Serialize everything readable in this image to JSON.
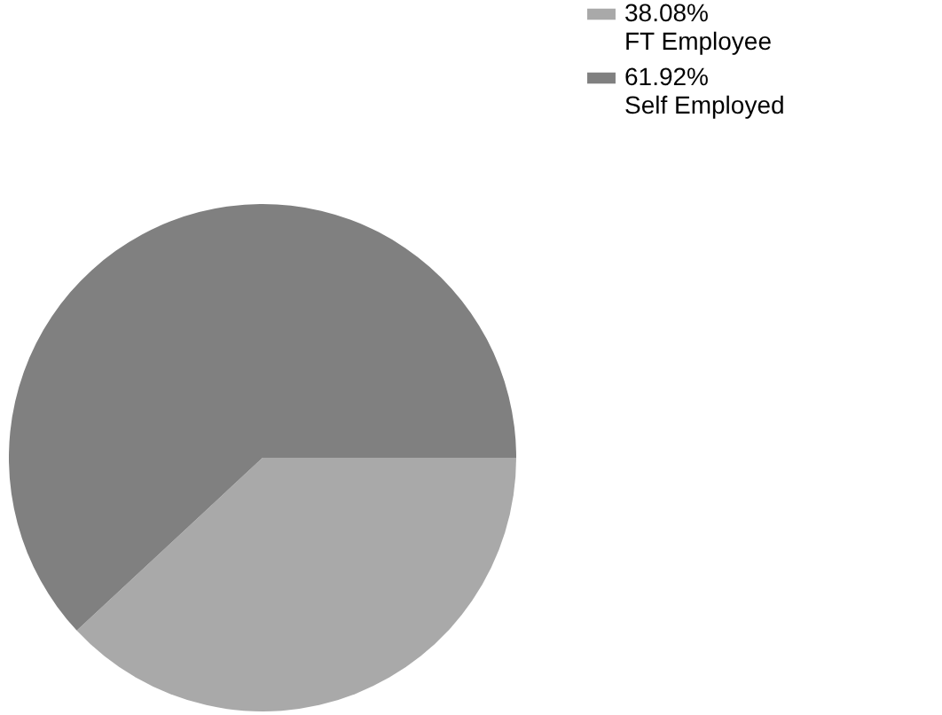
{
  "chart_data": {
    "type": "pie",
    "categories": [
      "FT Employee",
      "Self Employed"
    ],
    "values": [
      38.08,
      61.92
    ],
    "value_labels": [
      "38.08%",
      "61.92%"
    ],
    "colors": [
      "#a9a9a9",
      "#808080"
    ],
    "legend": "top right"
  }
}
